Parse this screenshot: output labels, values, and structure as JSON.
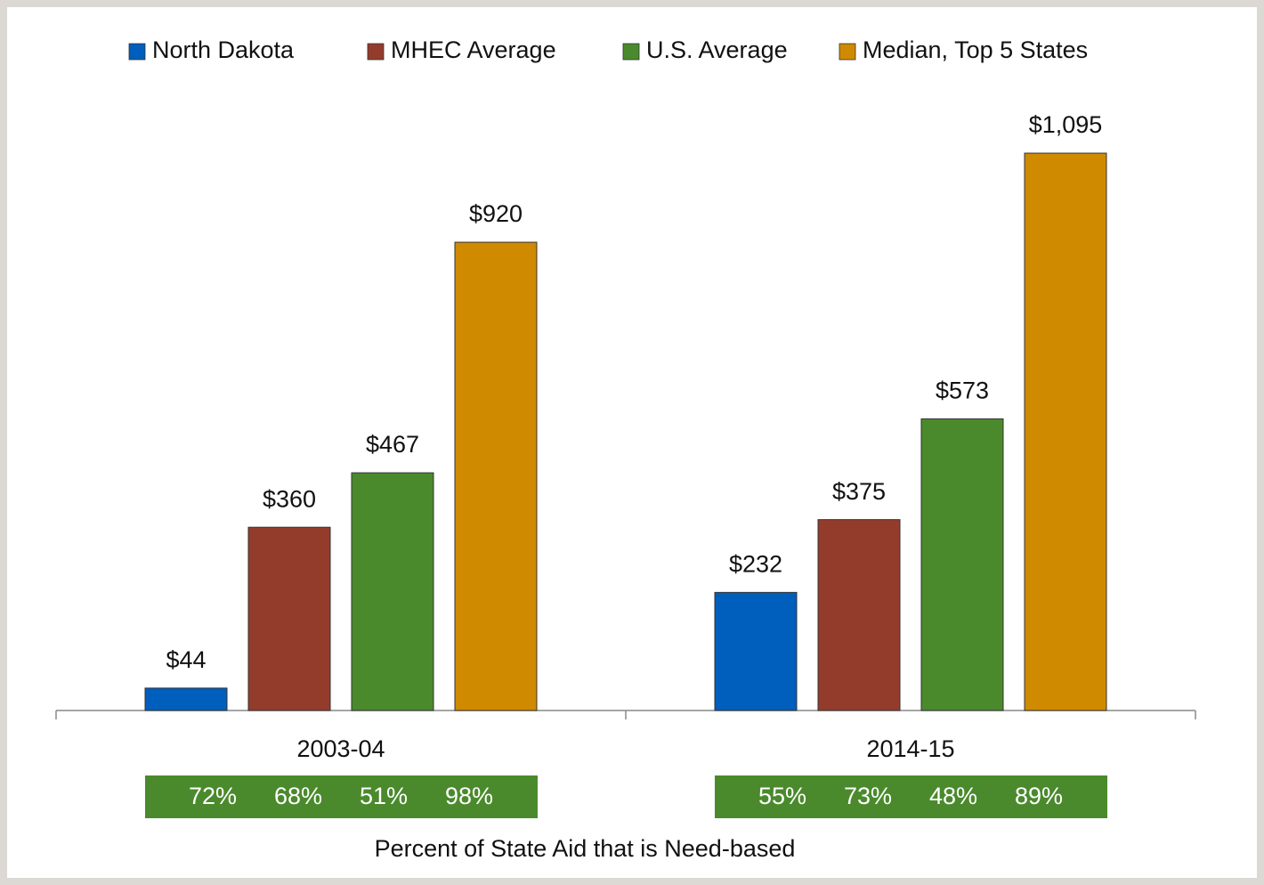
{
  "chart_data": {
    "type": "bar",
    "categories": [
      "2003-04",
      "2014-15"
    ],
    "series": [
      {
        "name": "North Dakota",
        "color": "#005ebc",
        "values": [
          44,
          232
        ],
        "value_labels": [
          "$44",
          "$232"
        ],
        "need_based": [
          72,
          55
        ],
        "need_based_labels": [
          "72%",
          "55%"
        ]
      },
      {
        "name": "MHEC Average",
        "color": "#943c2c",
        "values": [
          360,
          375
        ],
        "value_labels": [
          "$360",
          "$375"
        ],
        "need_based": [
          68,
          73
        ],
        "need_based_labels": [
          "68%",
          "73%"
        ]
      },
      {
        "name": "U.S. Average",
        "color": "#4a8a2c",
        "values": [
          467,
          573
        ],
        "value_labels": [
          "$467",
          "$573"
        ],
        "need_based": [
          51,
          48
        ],
        "need_based_labels": [
          "51%",
          "48%"
        ]
      },
      {
        "name": "Median, Top 5 States",
        "color": "#d08a00",
        "values": [
          920,
          1095
        ],
        "value_labels": [
          "$920",
          "$1,095"
        ],
        "need_based": [
          98,
          89
        ],
        "need_based_labels": [
          "98%",
          "89%"
        ]
      }
    ],
    "need_based_title": "Percent of State Aid that is Need-based",
    "need_based_color": "#4a8a2c",
    "ylim": [
      0,
      1200
    ],
    "legend": "top"
  }
}
